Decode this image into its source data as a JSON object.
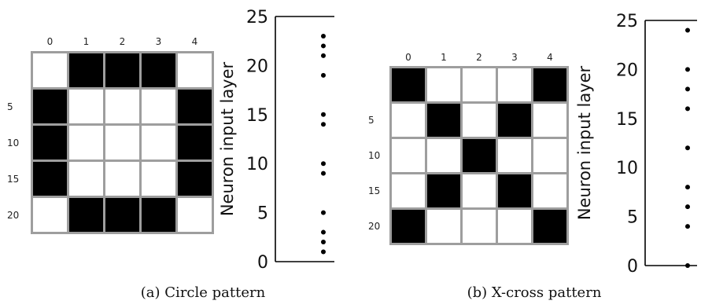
{
  "panels": [
    {
      "id": "a",
      "caption": "(a) Circle pattern",
      "grid": {
        "col_labels": [
          "0",
          "1",
          "2",
          "3",
          "4"
        ],
        "row_labels": [
          "",
          "5",
          "10",
          "15",
          "20"
        ],
        "cells": [
          [
            0,
            1,
            1,
            1,
            0
          ],
          [
            1,
            0,
            0,
            0,
            1
          ],
          [
            1,
            0,
            0,
            0,
            1
          ],
          [
            1,
            0,
            0,
            0,
            1
          ],
          [
            0,
            1,
            1,
            1,
            0
          ]
        ]
      },
      "chart_data": {
        "type": "scatter",
        "ylabel": "Neuron input layer",
        "ylim": [
          0,
          25
        ],
        "yticks": [
          "0",
          "5",
          "10",
          "15",
          "20",
          "25"
        ],
        "x": 0,
        "y": [
          1,
          2,
          3,
          5,
          9,
          10,
          14,
          15,
          19,
          21,
          22,
          23
        ]
      }
    },
    {
      "id": "b",
      "caption": "(b) X-cross pattern",
      "grid": {
        "col_labels": [
          "0",
          "1",
          "2",
          "3",
          "4"
        ],
        "row_labels": [
          "",
          "5",
          "10",
          "15",
          "20"
        ],
        "cells": [
          [
            1,
            0,
            0,
            0,
            1
          ],
          [
            0,
            1,
            0,
            1,
            0
          ],
          [
            0,
            0,
            1,
            0,
            0
          ],
          [
            0,
            1,
            0,
            1,
            0
          ],
          [
            1,
            0,
            0,
            0,
            1
          ]
        ]
      },
      "chart_data": {
        "type": "scatter",
        "ylabel": "Neuron input layer",
        "ylim": [
          0,
          25
        ],
        "yticks": [
          "0",
          "5",
          "10",
          "15",
          "20",
          "25"
        ],
        "x": 0,
        "y": [
          0,
          4,
          6,
          8,
          12,
          16,
          18,
          20,
          24
        ]
      }
    }
  ]
}
